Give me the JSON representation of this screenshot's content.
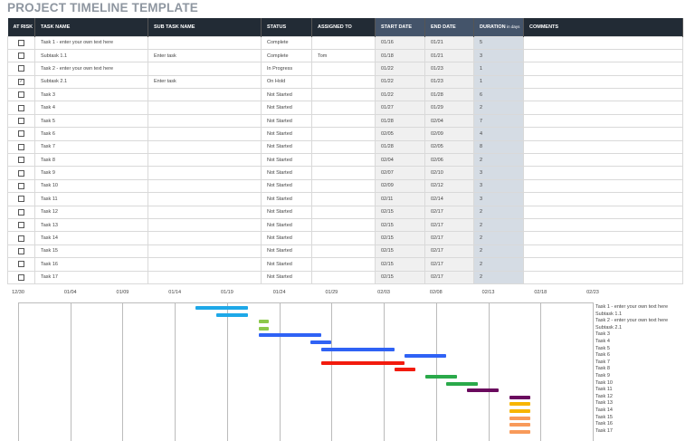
{
  "title": "PROJECT TIMELINE TEMPLATE",
  "columns": {
    "at_risk": "AT RISK",
    "task": "TASK NAME",
    "subtask": "SUB TASK NAME",
    "status": "STATUS",
    "assigned": "ASSIGNED TO",
    "start": "START DATE",
    "end": "END DATE",
    "duration": "DURATION",
    "duration_unit": "in days",
    "comments": "COMMENTS"
  },
  "rows": [
    {
      "at_risk": false,
      "task": "Task 1 - enter your own text here",
      "subtask": "",
      "status": "Complete",
      "assigned": "",
      "start": "01/16",
      "end": "01/21",
      "duration": "5",
      "comments": "",
      "color": "#1ea8e8"
    },
    {
      "at_risk": false,
      "task": "Subtask 1.1",
      "subtask": "Enter task",
      "status": "Complete",
      "assigned": "Tom",
      "start": "01/18",
      "end": "01/21",
      "duration": "3",
      "comments": "",
      "color": "#1ea8e8"
    },
    {
      "at_risk": false,
      "task": "Task 2 - enter your own text here",
      "subtask": "",
      "status": "In Progress",
      "assigned": "",
      "start": "01/22",
      "end": "01/23",
      "duration": "1",
      "comments": "",
      "color": "#8cc84b"
    },
    {
      "at_risk": true,
      "task": "Subtask 2.1",
      "subtask": "Enter task",
      "status": "On Hold",
      "assigned": "",
      "start": "01/22",
      "end": "01/23",
      "duration": "1",
      "comments": "",
      "color": "#8cc84b"
    },
    {
      "at_risk": false,
      "task": "Task 3",
      "subtask": "",
      "status": "Not Started",
      "assigned": "",
      "start": "01/22",
      "end": "01/28",
      "duration": "6",
      "comments": "",
      "color": "#2f62f5"
    },
    {
      "at_risk": false,
      "task": "Task 4",
      "subtask": "",
      "status": "Not Started",
      "assigned": "",
      "start": "01/27",
      "end": "01/29",
      "duration": "2",
      "comments": "",
      "color": "#2f62f5"
    },
    {
      "at_risk": false,
      "task": "Task 5",
      "subtask": "",
      "status": "Not Started",
      "assigned": "",
      "start": "01/28",
      "end": "02/04",
      "duration": "7",
      "comments": "",
      "color": "#2f62f5"
    },
    {
      "at_risk": false,
      "task": "Task 6",
      "subtask": "",
      "status": "Not Started",
      "assigned": "",
      "start": "02/05",
      "end": "02/09",
      "duration": "4",
      "comments": "",
      "color": "#2f62f5"
    },
    {
      "at_risk": false,
      "task": "Task 7",
      "subtask": "",
      "status": "Not Started",
      "assigned": "",
      "start": "01/28",
      "end": "02/05",
      "duration": "8",
      "comments": "",
      "color": "#f21b0d"
    },
    {
      "at_risk": false,
      "task": "Task 8",
      "subtask": "",
      "status": "Not Started",
      "assigned": "",
      "start": "02/04",
      "end": "02/06",
      "duration": "2",
      "comments": "",
      "color": "#f21b0d"
    },
    {
      "at_risk": false,
      "task": "Task 9",
      "subtask": "",
      "status": "Not Started",
      "assigned": "",
      "start": "02/07",
      "end": "02/10",
      "duration": "3",
      "comments": "",
      "color": "#2aa94a"
    },
    {
      "at_risk": false,
      "task": "Task 10",
      "subtask": "",
      "status": "Not Started",
      "assigned": "",
      "start": "02/09",
      "end": "02/12",
      "duration": "3",
      "comments": "",
      "color": "#2aa94a"
    },
    {
      "at_risk": false,
      "task": "Task 11",
      "subtask": "",
      "status": "Not Started",
      "assigned": "",
      "start": "02/11",
      "end": "02/14",
      "duration": "3",
      "comments": "",
      "color": "#6a0a5e"
    },
    {
      "at_risk": false,
      "task": "Task 12",
      "subtask": "",
      "status": "Not Started",
      "assigned": "",
      "start": "02/15",
      "end": "02/17",
      "duration": "2",
      "comments": "",
      "color": "#6a0a5e"
    },
    {
      "at_risk": false,
      "task": "Task 13",
      "subtask": "",
      "status": "Not Started",
      "assigned": "",
      "start": "02/15",
      "end": "02/17",
      "duration": "2",
      "comments": "",
      "color": "#f7b500"
    },
    {
      "at_risk": false,
      "task": "Task 14",
      "subtask": "",
      "status": "Not Started",
      "assigned": "",
      "start": "02/15",
      "end": "02/17",
      "duration": "2",
      "comments": "",
      "color": "#f7b500"
    },
    {
      "at_risk": false,
      "task": "Task 15",
      "subtask": "",
      "status": "Not Started",
      "assigned": "",
      "start": "02/15",
      "end": "02/17",
      "duration": "2",
      "comments": "",
      "color": "#f89a5a"
    },
    {
      "at_risk": false,
      "task": "Task 16",
      "subtask": "",
      "status": "Not Started",
      "assigned": "",
      "start": "02/15",
      "end": "02/17",
      "duration": "2",
      "comments": "",
      "color": "#f89a5a"
    },
    {
      "at_risk": false,
      "task": "Task 17",
      "subtask": "",
      "status": "Not Started",
      "assigned": "",
      "start": "02/15",
      "end": "02/17",
      "duration": "2",
      "comments": "",
      "color": "#f89a5a"
    }
  ],
  "chart_data": {
    "type": "gantt",
    "x_ticks": [
      "12/30",
      "01/04",
      "01/09",
      "01/14",
      "01/19",
      "01/24",
      "01/29",
      "02/03",
      "02/08",
      "02/13",
      "02/18",
      "02/23"
    ],
    "xlim": [
      "12/30",
      "02/23"
    ],
    "tick_interval_days": 5,
    "grid": true,
    "legend": "right"
  }
}
